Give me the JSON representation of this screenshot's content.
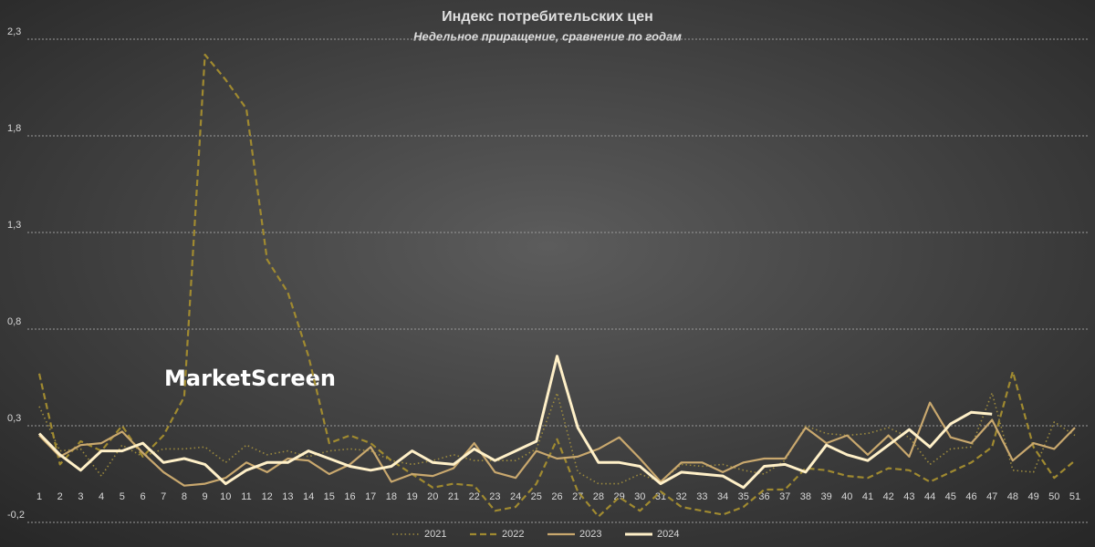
{
  "chart_data": {
    "type": "line",
    "title": "Индекс потребительских цен",
    "subtitle": "Недельное приращение, сравнение по годам",
    "watermark": "MarketScreen",
    "categories": [
      1,
      2,
      3,
      4,
      5,
      6,
      7,
      8,
      9,
      10,
      11,
      12,
      13,
      14,
      15,
      16,
      17,
      18,
      19,
      20,
      21,
      22,
      23,
      24,
      25,
      26,
      27,
      28,
      29,
      30,
      31,
      32,
      33,
      34,
      35,
      36,
      37,
      38,
      39,
      40,
      41,
      42,
      43,
      44,
      45,
      46,
      47,
      48,
      49,
      50,
      51
    ],
    "ylim": [
      -0.2,
      2.3
    ],
    "yticks": [
      {
        "value": -0.2,
        "label": "-0,2"
      },
      {
        "value": 0.3,
        "label": "0,3"
      },
      {
        "value": 0.8,
        "label": "0,8"
      },
      {
        "value": 1.3,
        "label": "1,3"
      },
      {
        "value": 1.8,
        "label": "1,8"
      },
      {
        "value": 2.3,
        "label": "2,3"
      }
    ],
    "grid": true,
    "legend": "bottom",
    "series": [
      {
        "name": "2021",
        "color": "#9c8a3e",
        "dash": "dotted",
        "width": 1.6,
        "values": [
          0.4,
          0.17,
          0.18,
          0.04,
          0.2,
          0.14,
          0.18,
          0.18,
          0.19,
          0.11,
          0.2,
          0.15,
          0.17,
          0.14,
          0.17,
          0.18,
          0.17,
          0.12,
          0.1,
          0.12,
          0.15,
          0.12,
          0.12,
          0.12,
          0.18,
          0.47,
          0.06,
          0.0,
          0.0,
          0.05,
          0.01,
          0.1,
          0.09,
          0.1,
          0.07,
          0.05,
          0.12,
          0.3,
          0.26,
          0.25,
          0.26,
          0.29,
          0.24,
          0.1,
          0.18,
          0.19,
          0.47,
          0.07,
          0.06,
          0.32,
          0.25
        ]
      },
      {
        "name": "2022",
        "color": "#a08a30",
        "dash": "dashed",
        "width": 2.2,
        "values": [
          0.57,
          0.1,
          0.22,
          0.17,
          0.3,
          0.14,
          0.25,
          0.45,
          2.22,
          2.09,
          1.94,
          1.16,
          0.99,
          0.66,
          0.21,
          0.25,
          0.21,
          0.12,
          0.05,
          -0.02,
          0.0,
          -0.01,
          -0.14,
          -0.12,
          0.0,
          0.23,
          -0.04,
          -0.17,
          -0.07,
          -0.14,
          -0.04,
          -0.12,
          -0.14,
          -0.16,
          -0.12,
          -0.03,
          -0.03,
          0.08,
          0.07,
          0.04,
          0.03,
          0.08,
          0.07,
          0.01,
          0.06,
          0.11,
          0.19,
          0.58,
          0.19,
          0.03,
          0.12
        ]
      },
      {
        "name": "2023",
        "color": "#c9a86e",
        "dash": "solid",
        "width": 2.2,
        "values": [
          0.25,
          0.14,
          0.2,
          0.21,
          0.27,
          0.16,
          0.06,
          -0.01,
          0.0,
          0.03,
          0.11,
          0.06,
          0.13,
          0.12,
          0.05,
          0.1,
          0.19,
          0.01,
          0.05,
          0.04,
          0.08,
          0.21,
          0.06,
          0.03,
          0.17,
          0.13,
          0.14,
          0.18,
          0.24,
          0.13,
          0.01,
          0.11,
          0.11,
          0.06,
          0.11,
          0.13,
          0.13,
          0.29,
          0.21,
          0.25,
          0.15,
          0.25,
          0.14,
          0.42,
          0.24,
          0.21,
          0.33,
          0.12,
          0.21,
          0.18,
          0.29
        ]
      },
      {
        "name": "2024",
        "color": "#fff0c8",
        "dash": "solid",
        "width": 3,
        "values": [
          0.26,
          0.15,
          0.07,
          0.17,
          0.17,
          0.21,
          0.11,
          0.13,
          0.1,
          0.0,
          0.07,
          0.11,
          0.11,
          0.17,
          0.13,
          0.09,
          0.07,
          0.09,
          0.17,
          0.11,
          0.1,
          0.18,
          0.12,
          0.17,
          0.22,
          0.66,
          0.29,
          0.11,
          0.11,
          0.09,
          0.0,
          0.06,
          0.05,
          0.04,
          -0.02,
          0.09,
          0.1,
          0.06,
          0.2,
          0.15,
          0.12,
          0.2,
          0.28,
          0.19,
          0.31,
          0.37,
          0.36,
          null,
          null,
          null,
          null
        ]
      }
    ]
  }
}
